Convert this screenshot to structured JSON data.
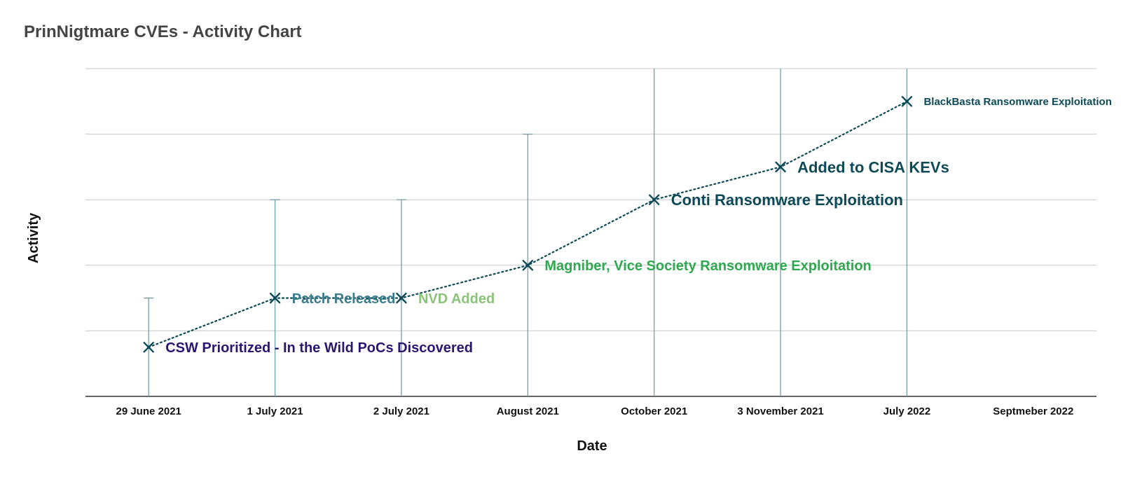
{
  "chart_data": {
    "type": "line",
    "title": "PrinNigtmare CVEs - Activity Chart",
    "xlabel": "Date",
    "ylabel": "Activity",
    "categories": [
      "29 June 2021",
      "1 July 2021",
      "2 July 2021",
      "August 2021",
      "October 2021",
      "3 November 2021",
      "July 2022",
      "Septmeber 2022"
    ],
    "ylim": [
      0,
      5
    ],
    "grid": true,
    "gridlines": [
      0,
      1,
      2,
      3,
      4,
      5
    ],
    "points": [
      {
        "category": "29 June 2021",
        "value": 0.75,
        "bar": 1.5,
        "label": "CSW Prioritized - In the Wild PoCs Discovered",
        "color": "#2a1670",
        "font": 20
      },
      {
        "category": "1 July 2021",
        "value": 1.5,
        "bar": 3,
        "label": "Patch Released",
        "color": "#3a7d8c",
        "font": 20
      },
      {
        "category": "2 July 2021",
        "value": 1.5,
        "bar": 3,
        "label": "NVD Added",
        "color": "#8cc37a",
        "font": 20
      },
      {
        "category": "August 2021",
        "value": 2,
        "bar": 4,
        "label": "Magniber, Vice Society Ransomware Exploitation",
        "color": "#2fa84f",
        "font": 20
      },
      {
        "category": "October 2021",
        "value": 3,
        "bar": 5,
        "label": "Conti Ransomware Exploitation",
        "color": "#0d4a57",
        "font": 22
      },
      {
        "category": "3 November 2021",
        "value": 3.5,
        "bar": 5,
        "label": "Added to CISA KEVs",
        "color": "#0d4a57",
        "font": 22
      },
      {
        "category": "July 2022",
        "value": 4.5,
        "bar": 5,
        "label": "BlackBasta Ransomware Exploitation",
        "color": "#0d4a57",
        "font": 15
      }
    ],
    "colors": {
      "line": "#0d4a57",
      "marker": "#0d4a57",
      "errorbar": "#6d98a0",
      "grid": "#c4c8cc",
      "axis": "#333333",
      "title": "#444444"
    }
  }
}
